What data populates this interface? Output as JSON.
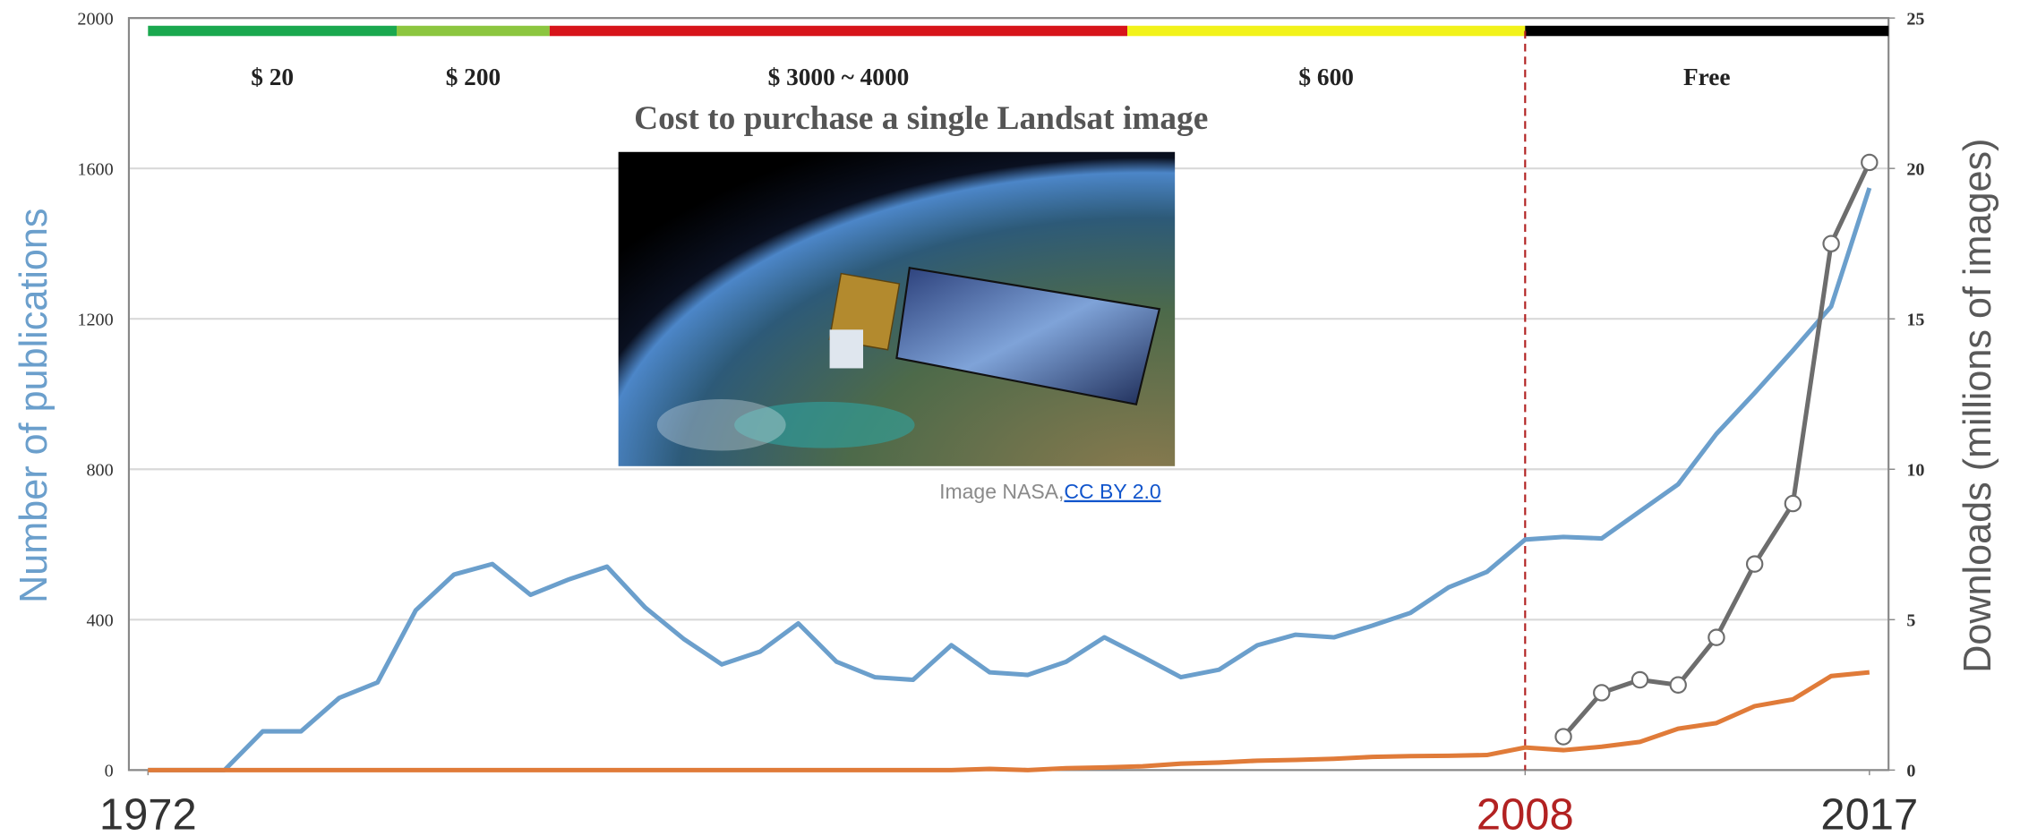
{
  "chart_data": {
    "type": "line",
    "title": "Cost to purchase a single Landsat image",
    "image_caption": "Image NASA, ",
    "image_link": "CC BY 2.0",
    "ylabel": "Number of publications",
    "y2label": "Downloads (millions of images)",
    "x": [
      1972,
      1973,
      1974,
      1975,
      1976,
      1977,
      1978,
      1979,
      1980,
      1981,
      1982,
      1983,
      1984,
      1985,
      1986,
      1987,
      1988,
      1989,
      1990,
      1991,
      1992,
      1993,
      1994,
      1995,
      1996,
      1997,
      1998,
      1999,
      2000,
      2001,
      2002,
      2003,
      2004,
      2005,
      2006,
      2007,
      2008,
      2009,
      2010,
      2011,
      2012,
      2013,
      2014,
      2015,
      2016,
      2017
    ],
    "xlim": [
      1971.5,
      2017.5
    ],
    "xticks": [
      1972,
      2008,
      2017
    ],
    "ylim": [
      0,
      2000
    ],
    "yticks": [
      0,
      400,
      800,
      1200,
      1600,
      2000
    ],
    "y2lim": [
      0,
      25
    ],
    "y2ticks": [
      0,
      5,
      10,
      15,
      20,
      25
    ],
    "grid": true,
    "divider": {
      "x": 2008,
      "color": "#b22222"
    },
    "cost_periods": [
      {
        "label": "$ 20",
        "color": "#1aa84f",
        "start": 1972,
        "end": 1978.5
      },
      {
        "label": "$ 200",
        "color": "#8cc63f",
        "start": 1978.5,
        "end": 1982.5
      },
      {
        "label": "$ 3000 ~ 4000",
        "color": "#d7141a",
        "start": 1982.5,
        "end": 1997.6
      },
      {
        "label": "$ 600",
        "color": "#f2f21a",
        "start": 1997.6,
        "end": 2008
      },
      {
        "label": "Free",
        "color": "#000000",
        "start": 2008,
        "end": 2017.5
      }
    ],
    "series": [
      {
        "color": "#6b9fcc",
        "values": [
          0,
          0,
          0,
          103,
          103,
          192,
          233,
          425,
          520,
          548,
          466,
          507,
          541,
          432,
          349,
          281,
          315,
          390,
          288,
          247,
          240,
          332,
          260,
          253,
          288,
          353,
          301,
          247,
          267,
          332,
          360,
          353,
          384,
          418,
          486,
          527,
          613,
          620,
          616,
          688,
          760,
          894,
          1003,
          1116,
          1233,
          1548
        ]
      },
      {
        "color": "#e07b39",
        "values": [
          0,
          0,
          0,
          0,
          0,
          0,
          0,
          0,
          0,
          0,
          0,
          0,
          0,
          0,
          0,
          0,
          0,
          0,
          0,
          0,
          0,
          0,
          3,
          0,
          5,
          7,
          10,
          17,
          20,
          25,
          27,
          30,
          35,
          37,
          38,
          40,
          60,
          53,
          62,
          75,
          110,
          125,
          170,
          188,
          250,
          260
        ]
      },
      {
        "color": "#6d6d6d",
        "axis": "y2",
        "marker": true,
        "values": [
          null,
          null,
          null,
          null,
          null,
          null,
          null,
          null,
          null,
          null,
          null,
          null,
          null,
          null,
          null,
          null,
          null,
          null,
          null,
          null,
          null,
          null,
          null,
          null,
          null,
          null,
          null,
          null,
          null,
          null,
          null,
          null,
          null,
          null,
          null,
          null,
          null,
          1.11,
          2.57,
          3.0,
          2.83,
          4.41,
          6.85,
          8.86,
          17.5,
          20.2
        ]
      }
    ]
  }
}
